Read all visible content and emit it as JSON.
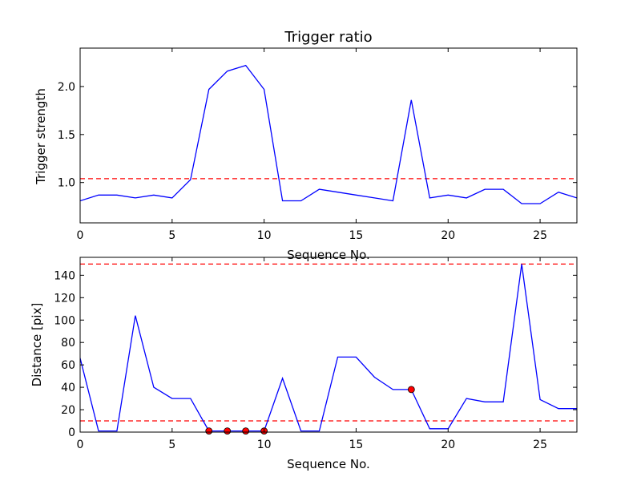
{
  "chart_data": [
    {
      "type": "line",
      "title": "Trigger ratio",
      "xlabel": "Sequence No.",
      "ylabel": "Trigger strength",
      "xlim": [
        0,
        27
      ],
      "ylim": [
        0.58,
        2.4
      ],
      "xticks": [
        0,
        5,
        10,
        15,
        20,
        25
      ],
      "yticks": [
        1.0,
        1.5,
        2.0
      ],
      "ytick_labels": [
        "1.0",
        "1.5",
        "2.0"
      ],
      "series": [
        {
          "name": "trigger strength",
          "color": "#0000ff",
          "x": [
            0,
            1,
            2,
            3,
            4,
            5,
            6,
            7,
            8,
            9,
            10,
            11,
            12,
            13,
            14,
            15,
            16,
            17,
            18,
            19,
            20,
            21,
            22,
            23,
            24,
            25,
            26,
            27
          ],
          "values": [
            0.81,
            0.87,
            0.87,
            0.84,
            0.87,
            0.84,
            1.03,
            1.97,
            2.16,
            2.22,
            1.97,
            0.81,
            0.81,
            0.93,
            0.9,
            0.87,
            0.84,
            0.81,
            1.86,
            0.84,
            0.87,
            0.84,
            0.93,
            0.93,
            0.78,
            0.78,
            0.9,
            0.84
          ]
        }
      ],
      "reference_lines": [
        {
          "y": 1.04,
          "color": "#ff0000",
          "style": "dashed"
        }
      ]
    },
    {
      "type": "line",
      "title": "",
      "xlabel": "Sequence No.",
      "ylabel": "Distance [pix]",
      "xlim": [
        0,
        27
      ],
      "ylim": [
        0,
        156
      ],
      "xticks": [
        0,
        5,
        10,
        15,
        20,
        25
      ],
      "yticks": [
        0,
        20,
        40,
        60,
        80,
        100,
        120,
        140
      ],
      "ytick_labels": [
        "0",
        "20",
        "40",
        "60",
        "80",
        "100",
        "120",
        "140"
      ],
      "series": [
        {
          "name": "distance",
          "color": "#0000ff",
          "x": [
            0,
            1,
            2,
            3,
            4,
            5,
            6,
            7,
            8,
            9,
            10,
            11,
            12,
            13,
            14,
            15,
            16,
            17,
            18,
            19,
            20,
            21,
            22,
            23,
            24,
            25,
            26,
            27
          ],
          "values": [
            66,
            1,
            1,
            104,
            40,
            30,
            30,
            1,
            1,
            1,
            1,
            48,
            1,
            1,
            67,
            67,
            49,
            38,
            38,
            3,
            3,
            30,
            27,
            27,
            150,
            29,
            21,
            21
          ]
        }
      ],
      "reference_lines": [
        {
          "y": 150,
          "color": "#ff0000",
          "style": "dashed"
        },
        {
          "y": 10,
          "color": "#ff0000",
          "style": "dashed"
        }
      ],
      "markers": {
        "color": "#ff0000",
        "x": [
          7,
          8,
          9,
          10,
          18
        ],
        "y": [
          1,
          1,
          1,
          1,
          38
        ]
      }
    }
  ]
}
